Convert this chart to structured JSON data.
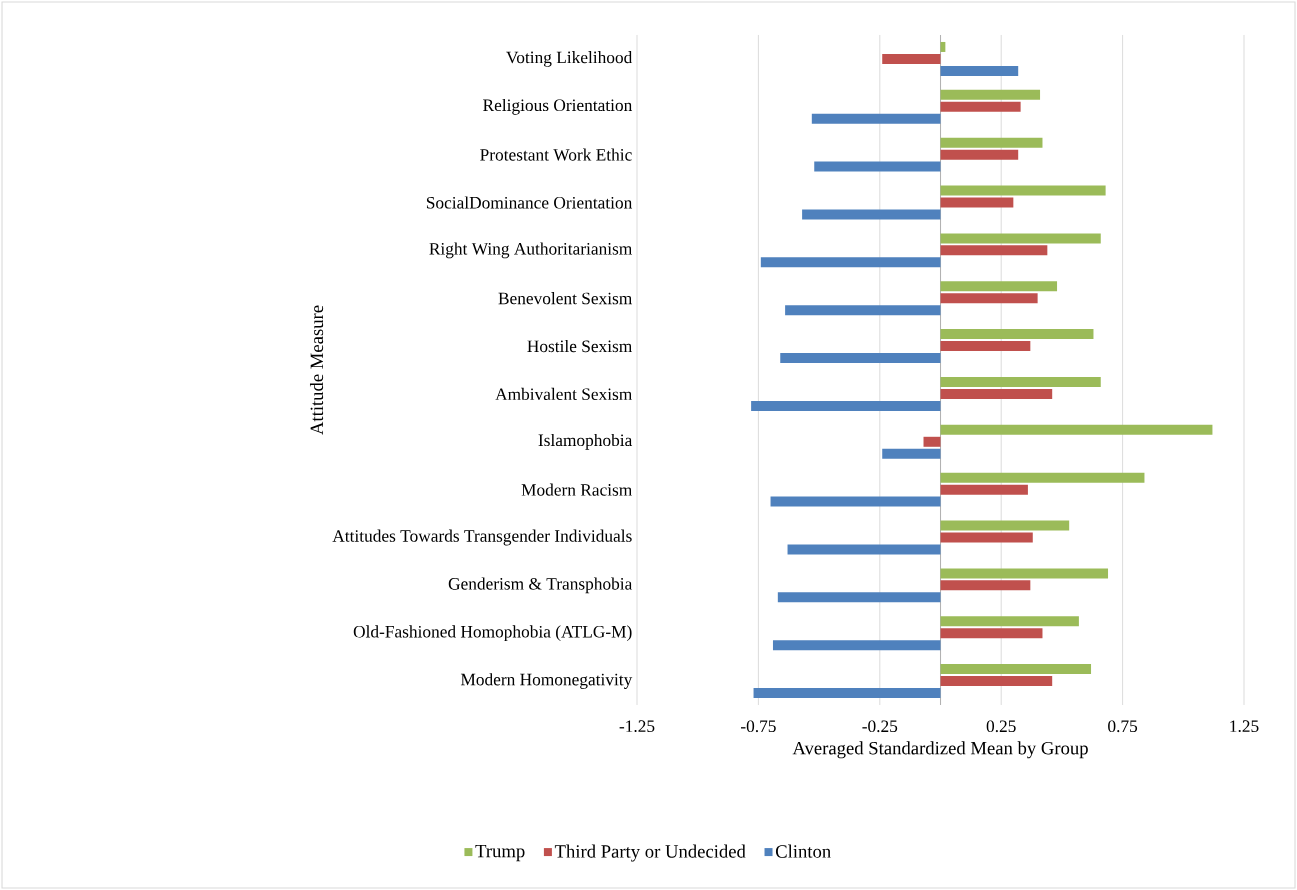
{
  "chart_data": {
    "type": "bar",
    "orientation": "horizontal",
    "xlabel": "Averaged Standardized Mean by Group",
    "ylabel": "Attitude Measure",
    "categories": [
      "Voting Likelihood",
      "Religious Orientation",
      "Protestant Work Ethic",
      "SocialDominance Orientation",
      "Right Wing Authoritarianism",
      "Benevolent Sexism",
      "Hostile Sexism",
      "Ambivalent Sexism",
      "Islamophobia",
      "Modern Racism",
      "Attitudes Towards Transgender Individuals",
      "Genderism & Transphobia",
      "Old-Fashioned Homophobia (ATLG-M)",
      "Modern Homonegativity"
    ],
    "series": [
      {
        "name": "Trump",
        "color": "#9bbb59",
        "values": [
          0.02,
          0.41,
          0.42,
          0.68,
          0.66,
          0.48,
          0.63,
          0.66,
          1.12,
          0.84,
          0.53,
          0.69,
          0.57,
          0.62
        ]
      },
      {
        "name": "Third Party or Undecided",
        "color": "#c0504d",
        "values": [
          -0.24,
          0.33,
          0.32,
          0.3,
          0.44,
          0.4,
          0.37,
          0.46,
          -0.07,
          0.36,
          0.38,
          0.37,
          0.42,
          0.46
        ]
      },
      {
        "name": "Clinton",
        "color": "#4f81bd",
        "values": [
          0.32,
          -0.53,
          -0.52,
          -0.57,
          -0.74,
          -0.64,
          -0.66,
          -0.78,
          -0.24,
          -0.7,
          -0.63,
          -0.67,
          -0.69,
          -0.77
        ]
      }
    ],
    "xlim": [
      -1.25,
      1.25
    ],
    "xticks": [
      -1.25,
      -0.75,
      -0.25,
      0.25,
      0.75,
      1.25
    ],
    "grid": "x",
    "legend": "bottom"
  }
}
